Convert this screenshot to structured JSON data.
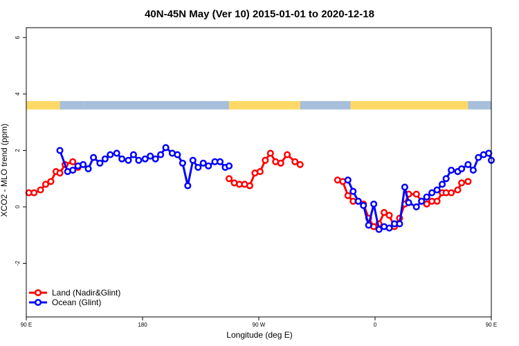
{
  "chart_data": {
    "type": "line",
    "title": "40N-45N May (Ver 10)   2015-01-01 to 2020-12-18",
    "xlabel": "Longitude (deg E)",
    "ylabel": "XCO2 - MLO trend (ppm)",
    "xlim": [
      90,
      450
    ],
    "ylim": [
      -3.9,
      6.35
    ],
    "xticks": [
      {
        "value": 90,
        "label": "90 E"
      },
      {
        "value": 180,
        "label": "180"
      },
      {
        "value": 270,
        "label": "90 W"
      },
      {
        "value": 360,
        "label": "0"
      },
      {
        "value": 450,
        "label": "90 E"
      },
      {
        "value": 540,
        "label": "180"
      }
    ],
    "yticks": [
      {
        "value": -2,
        "label": "-2"
      },
      {
        "value": 0,
        "label": "0"
      },
      {
        "value": 2,
        "label": "2"
      },
      {
        "value": 4,
        "label": "4"
      },
      {
        "value": 6,
        "label": "6"
      }
    ],
    "surface_bar": {
      "y_range": [
        3.45,
        3.75
      ],
      "colors": {
        "land": "#ffd966",
        "ocean": "#a8bfdc"
      },
      "segments": [
        {
          "from": 90,
          "to": 116,
          "kind": "land"
        },
        {
          "from": 116,
          "to": 134,
          "kind": "ocean"
        },
        {
          "from": 134,
          "to": 247,
          "kind": "ocean"
        },
        {
          "from": 247,
          "to": 302,
          "kind": "land"
        },
        {
          "from": 302,
          "to": 341,
          "kind": "ocean"
        },
        {
          "from": 341,
          "to": 405,
          "kind": "land"
        },
        {
          "from": 405,
          "to": 432,
          "kind": "land"
        },
        {
          "from": 432,
          "to": 450,
          "kind": "ocean"
        }
      ]
    },
    "grid": false,
    "legend_position": "bottom-left",
    "series": [
      {
        "name": "Land (Nadir&Glint)",
        "color": "#ff0000",
        "x": [
          92,
          96,
          101,
          105,
          109,
          113,
          116,
          120,
          126,
          130,
          247,
          251,
          255,
          259,
          263,
          267,
          271,
          275,
          279,
          283,
          287,
          292,
          298,
          302,
          331,
          335,
          339,
          343,
          347,
          351,
          355,
          359,
          363,
          367,
          371,
          375,
          379,
          383,
          386,
          392,
          396,
          400,
          404,
          408,
          412,
          415,
          419,
          424,
          427,
          432
        ],
        "y": [
          0.5,
          0.5,
          0.6,
          0.8,
          0.9,
          1.25,
          1.2,
          1.5,
          1.6,
          1.4,
          1.0,
          0.85,
          0.8,
          0.8,
          0.75,
          1.2,
          1.25,
          1.65,
          1.9,
          1.6,
          1.55,
          1.85,
          1.6,
          1.5,
          0.95,
          0.9,
          0.4,
          0.2,
          0.2,
          0.1,
          -0.4,
          -0.7,
          -0.6,
          -0.2,
          -0.3,
          -0.7,
          -0.4,
          0.1,
          0.45,
          0.45,
          0.2,
          0.1,
          0.2,
          0.2,
          0.5,
          0.5,
          0.5,
          0.6,
          0.85,
          0.9
        ]
      },
      {
        "name": "Ocean (Glint)",
        "color": "#0000ff",
        "x": [
          116,
          122,
          126,
          130,
          134,
          138,
          142,
          147,
          151,
          155,
          160,
          164,
          169,
          173,
          177,
          182,
          186,
          190,
          194,
          198,
          203,
          207,
          211,
          215,
          219,
          223,
          227,
          231,
          236,
          240,
          244,
          247,
          339,
          343,
          347,
          351,
          355,
          359,
          363,
          367,
          371,
          375,
          379,
          383,
          386,
          392,
          396,
          400,
          404,
          408,
          412,
          415,
          419,
          424,
          427,
          432,
          436,
          440,
          444,
          448,
          450
        ],
        "y": [
          2.0,
          1.25,
          1.3,
          1.45,
          1.5,
          1.35,
          1.75,
          1.55,
          1.7,
          1.85,
          1.9,
          1.7,
          1.65,
          1.85,
          1.65,
          1.7,
          1.8,
          1.7,
          1.85,
          2.1,
          1.9,
          1.85,
          1.55,
          0.75,
          1.65,
          1.4,
          1.55,
          1.45,
          1.6,
          1.6,
          1.4,
          1.45,
          0.95,
          0.55,
          0.2,
          0.05,
          -0.65,
          0.1,
          -0.8,
          -0.7,
          -0.75,
          -0.6,
          -0.6,
          0.7,
          0.15,
          0.0,
          0.2,
          0.35,
          0.5,
          0.6,
          0.8,
          1.0,
          1.3,
          1.25,
          1.35,
          1.5,
          1.3,
          1.75,
          1.85,
          1.9,
          1.65
        ]
      }
    ]
  }
}
